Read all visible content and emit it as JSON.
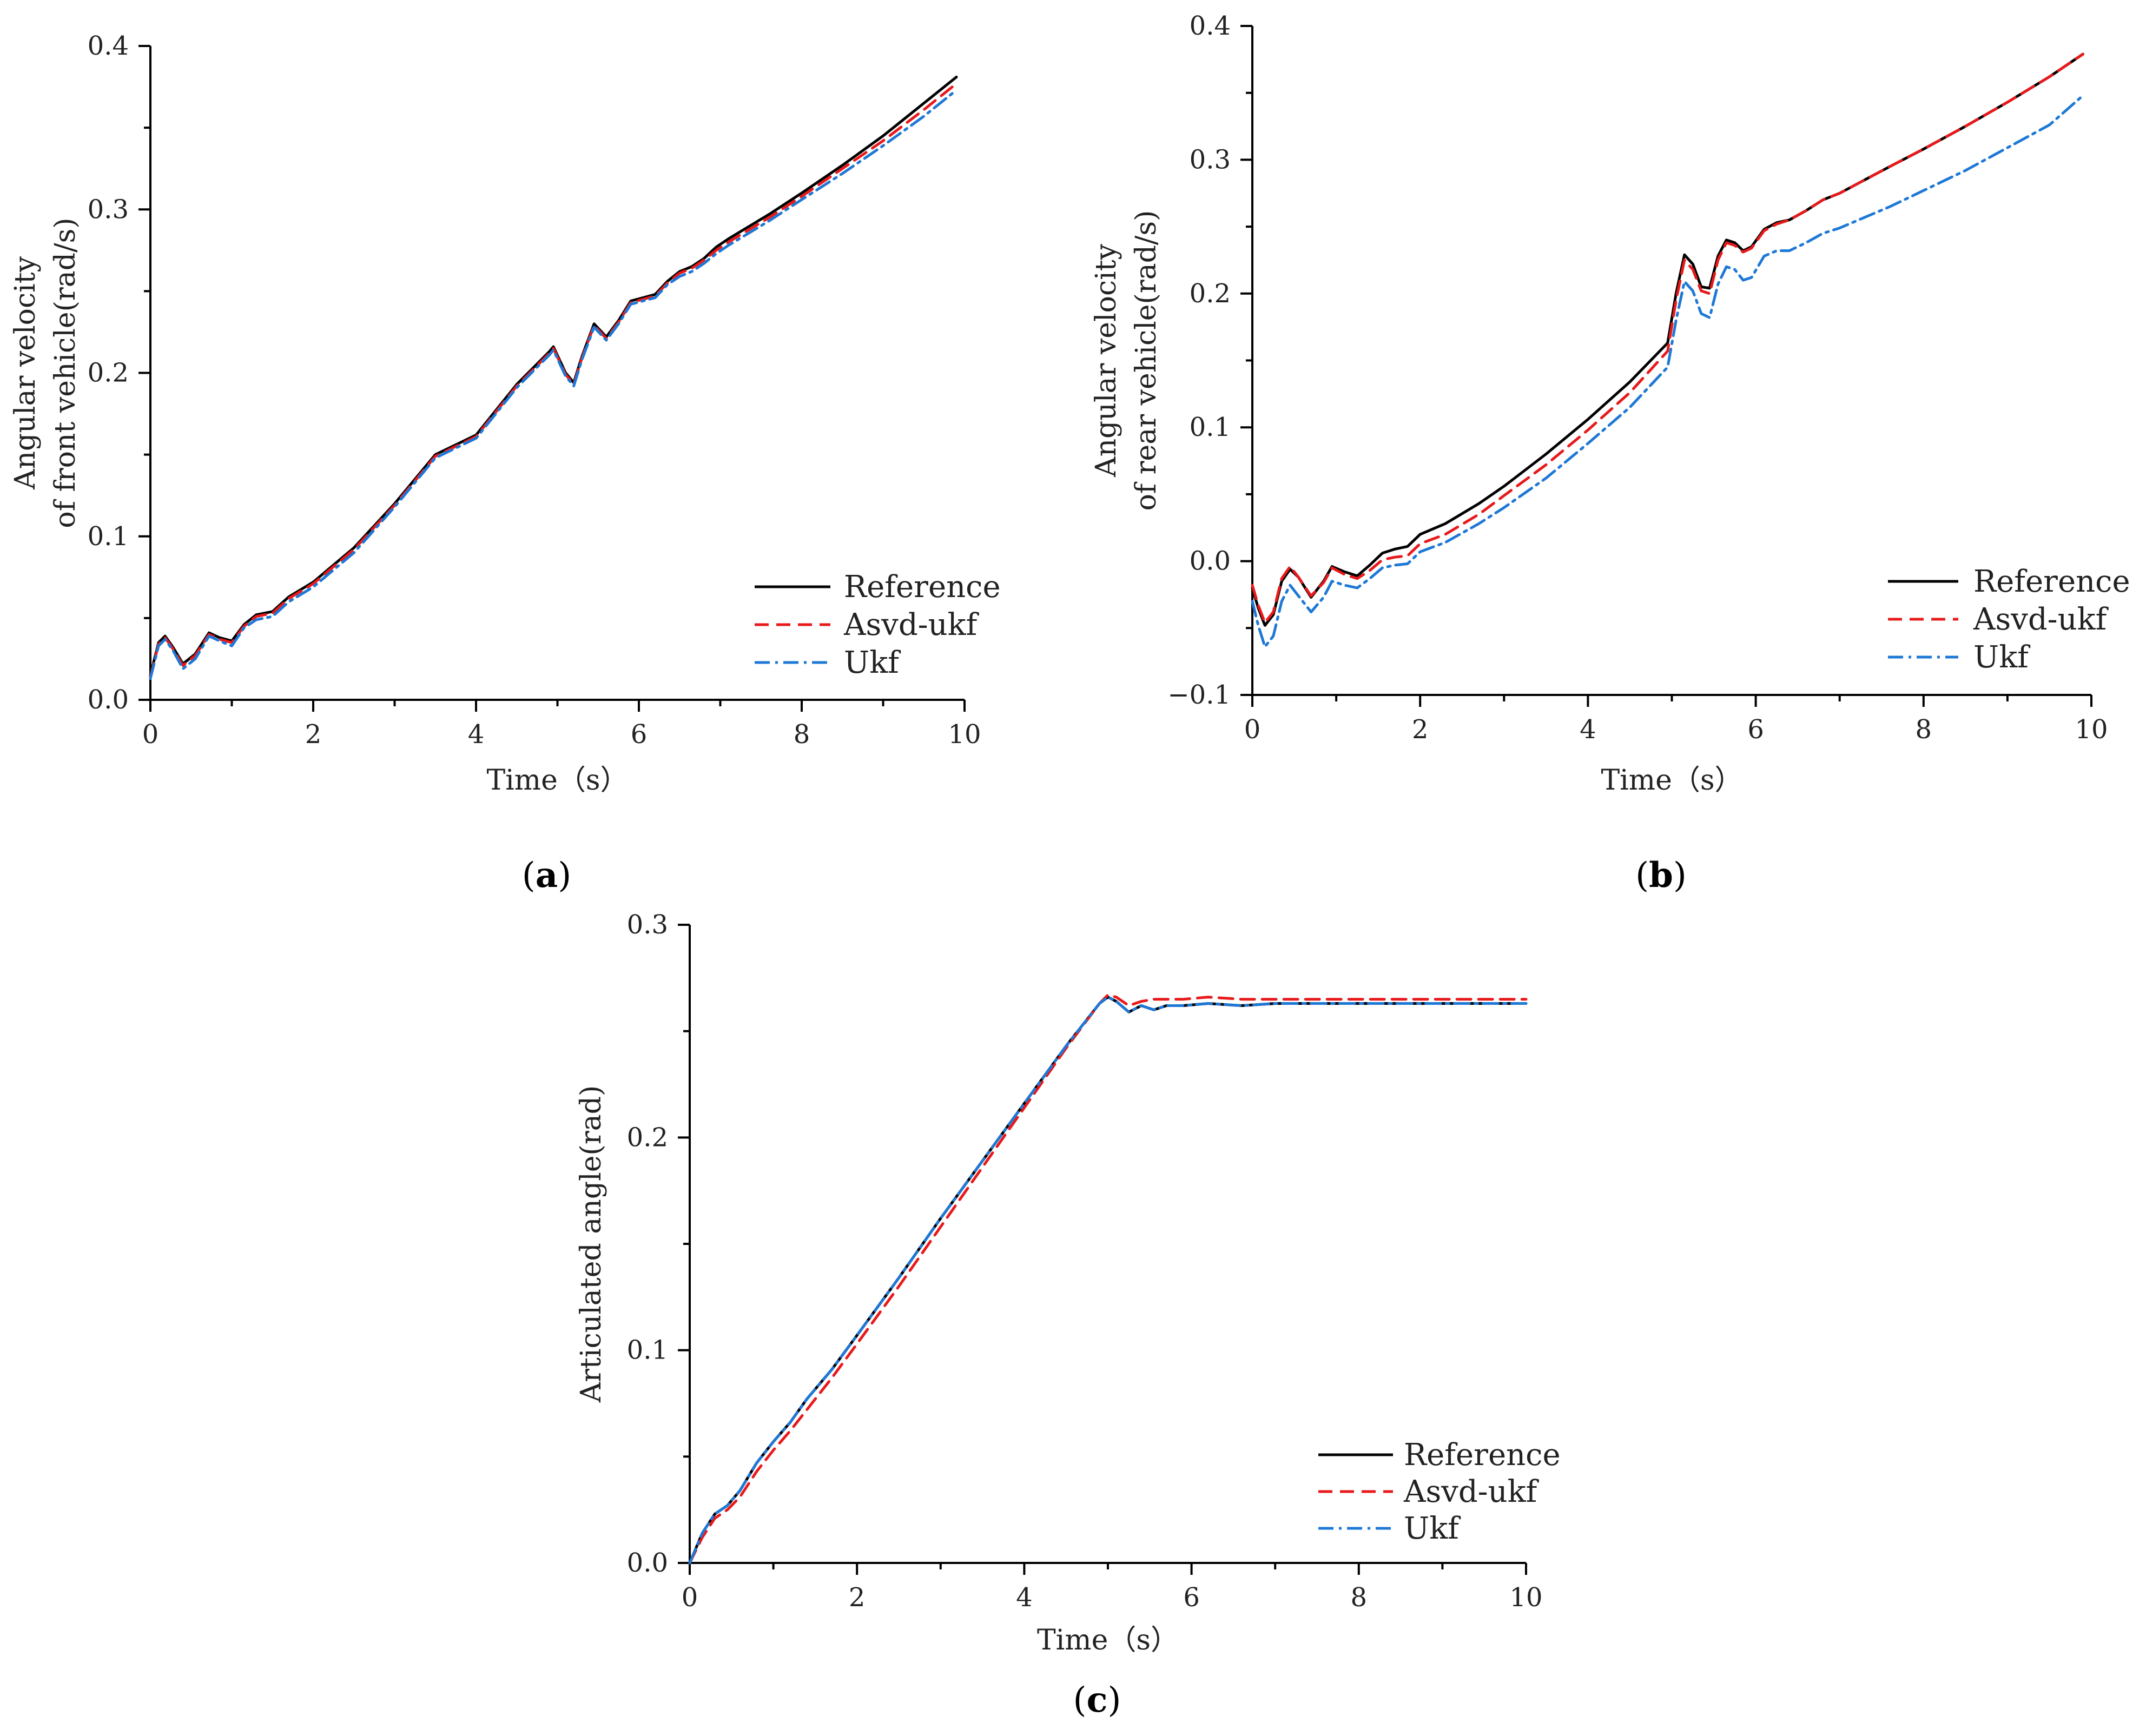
{
  "colors": {
    "reference": "#000000",
    "asvd_ukf": "#e8191b",
    "ukf": "#1e78d6"
  },
  "chart_data": [
    {
      "id": "a",
      "type": "line",
      "panel_label": "a",
      "xlabel": "Time（s）",
      "ylabel_lines": [
        "Angular  velocity",
        "of front vehicle(rad/s)"
      ],
      "xlim": [
        0,
        10
      ],
      "ylim": [
        0,
        0.4
      ],
      "xticks": [
        0,
        2,
        4,
        6,
        8,
        10
      ],
      "xtick_labels": [
        "0",
        "2",
        "4",
        "6",
        "8",
        "10"
      ],
      "yticks": [
        0,
        0.1,
        0.2,
        0.3,
        0.4
      ],
      "ytick_labels": [
        "0.0",
        "0.1",
        "0.2",
        "0.3",
        "0.4"
      ],
      "legend_position": "bottom-right",
      "series": [
        {
          "name": "Reference",
          "style": "solid",
          "color": "#000000",
          "x": [
            0,
            0.1,
            0.18,
            0.28,
            0.4,
            0.55,
            0.72,
            0.85,
            1.0,
            1.15,
            1.3,
            1.5,
            1.7,
            2.0,
            2.5,
            3.0,
            3.5,
            4.0,
            4.5,
            4.9,
            4.95,
            5.1,
            5.2,
            5.3,
            5.45,
            5.6,
            5.75,
            5.9,
            6.05,
            6.2,
            6.35,
            6.5,
            6.65,
            6.8,
            6.95,
            7.1,
            7.3,
            7.6,
            8.0,
            8.5,
            9.0,
            9.5,
            9.9
          ],
          "y": [
            0.015,
            0.035,
            0.039,
            0.032,
            0.022,
            0.028,
            0.041,
            0.038,
            0.036,
            0.046,
            0.052,
            0.054,
            0.063,
            0.072,
            0.093,
            0.12,
            0.15,
            0.162,
            0.193,
            0.213,
            0.216,
            0.2,
            0.194,
            0.21,
            0.23,
            0.222,
            0.232,
            0.244,
            0.246,
            0.248,
            0.256,
            0.262,
            0.265,
            0.27,
            0.277,
            0.282,
            0.288,
            0.297,
            0.31,
            0.327,
            0.345,
            0.365,
            0.381
          ]
        },
        {
          "name": "Asvd-ukf",
          "style": "dashed",
          "color": "#e8191b",
          "x": [
            0,
            0.1,
            0.18,
            0.28,
            0.4,
            0.55,
            0.72,
            0.85,
            1.0,
            1.15,
            1.3,
            1.5,
            1.7,
            2.0,
            2.5,
            3.0,
            3.5,
            4.0,
            4.5,
            4.9,
            4.95,
            5.1,
            5.2,
            5.3,
            5.45,
            5.6,
            5.75,
            5.9,
            6.05,
            6.2,
            6.35,
            6.5,
            6.65,
            6.8,
            6.95,
            7.1,
            7.3,
            7.6,
            8.0,
            8.5,
            9.0,
            9.5,
            9.9
          ],
          "y": [
            0.014,
            0.034,
            0.038,
            0.031,
            0.021,
            0.027,
            0.04,
            0.037,
            0.035,
            0.045,
            0.051,
            0.053,
            0.062,
            0.071,
            0.092,
            0.119,
            0.149,
            0.161,
            0.192,
            0.212,
            0.215,
            0.199,
            0.193,
            0.209,
            0.229,
            0.221,
            0.231,
            0.243,
            0.245,
            0.247,
            0.255,
            0.261,
            0.264,
            0.269,
            0.275,
            0.28,
            0.286,
            0.295,
            0.308,
            0.325,
            0.342,
            0.361,
            0.377
          ]
        },
        {
          "name": "Ukf",
          "style": "dashdot",
          "color": "#1e78d6",
          "x": [
            0,
            0.1,
            0.18,
            0.28,
            0.4,
            0.55,
            0.72,
            0.85,
            1.0,
            1.15,
            1.3,
            1.5,
            1.7,
            2.0,
            2.5,
            3.0,
            3.5,
            4.0,
            4.5,
            4.9,
            4.95,
            5.1,
            5.2,
            5.3,
            5.45,
            5.6,
            5.75,
            5.9,
            6.05,
            6.2,
            6.35,
            6.5,
            6.65,
            6.8,
            6.95,
            7.1,
            7.3,
            7.6,
            8.0,
            8.5,
            9.0,
            9.5,
            9.9
          ],
          "y": [
            0.013,
            0.033,
            0.037,
            0.03,
            0.019,
            0.025,
            0.039,
            0.036,
            0.033,
            0.044,
            0.049,
            0.051,
            0.06,
            0.069,
            0.09,
            0.118,
            0.148,
            0.16,
            0.191,
            0.211,
            0.214,
            0.198,
            0.192,
            0.208,
            0.228,
            0.22,
            0.23,
            0.242,
            0.244,
            0.246,
            0.254,
            0.259,
            0.262,
            0.267,
            0.273,
            0.278,
            0.284,
            0.293,
            0.306,
            0.322,
            0.339,
            0.357,
            0.373
          ]
        }
      ]
    },
    {
      "id": "b",
      "type": "line",
      "panel_label": "b",
      "xlabel": "Time（s）",
      "ylabel_lines": [
        "Angular  velocity",
        "of rear vehicle(rad/s)"
      ],
      "xlim": [
        0,
        10
      ],
      "ylim": [
        -0.1,
        0.4
      ],
      "xticks": [
        0,
        2,
        4,
        6,
        8,
        10
      ],
      "xtick_labels": [
        "0",
        "2",
        "4",
        "6",
        "8",
        "10"
      ],
      "yticks": [
        -0.1,
        0,
        0.1,
        0.2,
        0.3,
        0.4
      ],
      "ytick_labels": [
        "−0.1",
        "0.0",
        "0.1",
        "0.2",
        "0.3",
        "0.4"
      ],
      "legend_position": "bottom-right",
      "series": [
        {
          "name": "Reference",
          "style": "solid",
          "color": "#000000",
          "x": [
            0,
            0.07,
            0.15,
            0.25,
            0.35,
            0.45,
            0.55,
            0.7,
            0.85,
            0.95,
            1.1,
            1.25,
            1.4,
            1.55,
            1.7,
            1.85,
            2.0,
            2.3,
            2.7,
            3.0,
            3.5,
            4.0,
            4.5,
            4.95,
            5.05,
            5.15,
            5.25,
            5.35,
            5.45,
            5.55,
            5.65,
            5.75,
            5.85,
            5.95,
            6.1,
            6.25,
            6.4,
            6.6,
            6.8,
            7.0,
            7.3,
            7.6,
            8.0,
            8.5,
            9.0,
            9.5,
            9.9
          ],
          "y": [
            -0.02,
            -0.035,
            -0.048,
            -0.04,
            -0.015,
            -0.006,
            -0.012,
            -0.027,
            -0.015,
            -0.004,
            -0.008,
            -0.011,
            -0.003,
            0.006,
            0.009,
            0.011,
            0.02,
            0.028,
            0.043,
            0.056,
            0.08,
            0.106,
            0.134,
            0.163,
            0.2,
            0.229,
            0.222,
            0.205,
            0.204,
            0.228,
            0.24,
            0.238,
            0.232,
            0.235,
            0.248,
            0.253,
            0.255,
            0.262,
            0.27,
            0.275,
            0.285,
            0.295,
            0.308,
            0.325,
            0.343,
            0.362,
            0.379
          ]
        },
        {
          "name": "Asvd-ukf",
          "style": "dashed",
          "color": "#e8191b",
          "x": [
            0,
            0.07,
            0.15,
            0.25,
            0.35,
            0.45,
            0.55,
            0.7,
            0.85,
            0.95,
            1.1,
            1.25,
            1.4,
            1.55,
            1.7,
            1.85,
            2.0,
            2.3,
            2.7,
            3.0,
            3.5,
            4.0,
            4.5,
            4.95,
            5.05,
            5.15,
            5.25,
            5.35,
            5.45,
            5.55,
            5.65,
            5.75,
            5.85,
            5.95,
            6.1,
            6.25,
            6.4,
            6.6,
            6.8,
            7.0,
            7.3,
            7.6,
            8.0,
            8.5,
            9.0,
            9.5,
            9.9
          ],
          "y": [
            -0.018,
            -0.033,
            -0.046,
            -0.038,
            -0.013,
            -0.004,
            -0.012,
            -0.026,
            -0.016,
            -0.005,
            -0.01,
            -0.013,
            -0.007,
            0.001,
            0.003,
            0.004,
            0.013,
            0.02,
            0.035,
            0.049,
            0.072,
            0.098,
            0.126,
            0.157,
            0.195,
            0.225,
            0.218,
            0.202,
            0.2,
            0.225,
            0.238,
            0.236,
            0.231,
            0.234,
            0.247,
            0.252,
            0.255,
            0.262,
            0.27,
            0.275,
            0.285,
            0.295,
            0.308,
            0.325,
            0.343,
            0.362,
            0.379
          ]
        },
        {
          "name": "Ukf",
          "style": "dashdot",
          "color": "#1e78d6",
          "x": [
            0,
            0.07,
            0.15,
            0.25,
            0.35,
            0.45,
            0.55,
            0.7,
            0.85,
            0.95,
            1.1,
            1.25,
            1.4,
            1.55,
            1.7,
            1.85,
            2.0,
            2.3,
            2.7,
            3.0,
            3.5,
            4.0,
            4.5,
            4.95,
            5.05,
            5.15,
            5.25,
            5.35,
            5.45,
            5.55,
            5.65,
            5.75,
            5.85,
            5.95,
            6.1,
            6.25,
            6.4,
            6.6,
            6.8,
            7.0,
            7.3,
            7.6,
            8.0,
            8.5,
            9.0,
            9.5,
            9.9
          ],
          "y": [
            -0.03,
            -0.048,
            -0.064,
            -0.056,
            -0.03,
            -0.018,
            -0.026,
            -0.038,
            -0.027,
            -0.015,
            -0.018,
            -0.02,
            -0.013,
            -0.005,
            -0.003,
            -0.002,
            0.007,
            0.014,
            0.028,
            0.04,
            0.062,
            0.088,
            0.115,
            0.145,
            0.18,
            0.209,
            0.202,
            0.185,
            0.182,
            0.207,
            0.22,
            0.218,
            0.21,
            0.212,
            0.228,
            0.232,
            0.232,
            0.238,
            0.245,
            0.249,
            0.257,
            0.265,
            0.277,
            0.292,
            0.309,
            0.326,
            0.348
          ]
        }
      ]
    },
    {
      "id": "c",
      "type": "line",
      "panel_label": "c",
      "xlabel": "Time（s）",
      "ylabel_lines": [
        "Articulated angle(rad)"
      ],
      "xlim": [
        0,
        10
      ],
      "ylim": [
        0,
        0.3
      ],
      "xticks": [
        0,
        2,
        4,
        6,
        8,
        10
      ],
      "xtick_labels": [
        "0",
        "2",
        "4",
        "6",
        "8",
        "10"
      ],
      "yticks": [
        0,
        0.1,
        0.2,
        0.3
      ],
      "ytick_labels": [
        "0.0",
        "0.1",
        "0.2",
        "0.3"
      ],
      "legend_position": "bottom-right",
      "series": [
        {
          "name": "Reference",
          "style": "solid",
          "color": "#000000",
          "x": [
            0,
            0.15,
            0.3,
            0.45,
            0.6,
            0.8,
            1.0,
            1.2,
            1.4,
            1.7,
            2.0,
            2.5,
            3.0,
            3.5,
            4.0,
            4.5,
            4.9,
            5.0,
            5.1,
            5.25,
            5.4,
            5.55,
            5.7,
            5.9,
            6.2,
            6.6,
            7.0,
            8.0,
            9.0,
            10.0
          ],
          "y": [
            0.0,
            0.014,
            0.023,
            0.027,
            0.034,
            0.047,
            0.057,
            0.066,
            0.077,
            0.091,
            0.107,
            0.134,
            0.162,
            0.189,
            0.216,
            0.243,
            0.263,
            0.266,
            0.264,
            0.259,
            0.262,
            0.26,
            0.262,
            0.262,
            0.263,
            0.262,
            0.263,
            0.263,
            0.263,
            0.263
          ]
        },
        {
          "name": "Asvd-ukf",
          "style": "dashed",
          "color": "#e8191b",
          "x": [
            0,
            0.15,
            0.3,
            0.45,
            0.6,
            0.8,
            1.0,
            1.2,
            1.4,
            1.7,
            2.0,
            2.5,
            3.0,
            3.5,
            4.0,
            4.5,
            4.9,
            5.0,
            5.1,
            5.25,
            5.4,
            5.55,
            5.7,
            5.9,
            6.2,
            6.6,
            7.0,
            8.0,
            9.0,
            10.0
          ],
          "y": [
            0.0,
            0.012,
            0.021,
            0.025,
            0.031,
            0.043,
            0.053,
            0.062,
            0.072,
            0.087,
            0.103,
            0.13,
            0.158,
            0.186,
            0.214,
            0.242,
            0.263,
            0.267,
            0.266,
            0.262,
            0.264,
            0.265,
            0.265,
            0.265,
            0.266,
            0.265,
            0.265,
            0.265,
            0.265,
            0.265
          ]
        },
        {
          "name": "Ukf",
          "style": "dashdot",
          "color": "#1e78d6",
          "x": [
            0,
            0.15,
            0.3,
            0.45,
            0.6,
            0.8,
            1.0,
            1.2,
            1.4,
            1.7,
            2.0,
            2.5,
            3.0,
            3.5,
            4.0,
            4.5,
            4.9,
            5.0,
            5.1,
            5.25,
            5.4,
            5.55,
            5.7,
            5.9,
            6.2,
            6.6,
            7.0,
            8.0,
            9.0,
            10.0
          ],
          "y": [
            0.0,
            0.014,
            0.023,
            0.027,
            0.034,
            0.047,
            0.057,
            0.066,
            0.077,
            0.091,
            0.107,
            0.134,
            0.162,
            0.189,
            0.216,
            0.243,
            0.263,
            0.266,
            0.264,
            0.259,
            0.262,
            0.26,
            0.262,
            0.262,
            0.263,
            0.262,
            0.263,
            0.263,
            0.263,
            0.263
          ]
        }
      ]
    }
  ]
}
